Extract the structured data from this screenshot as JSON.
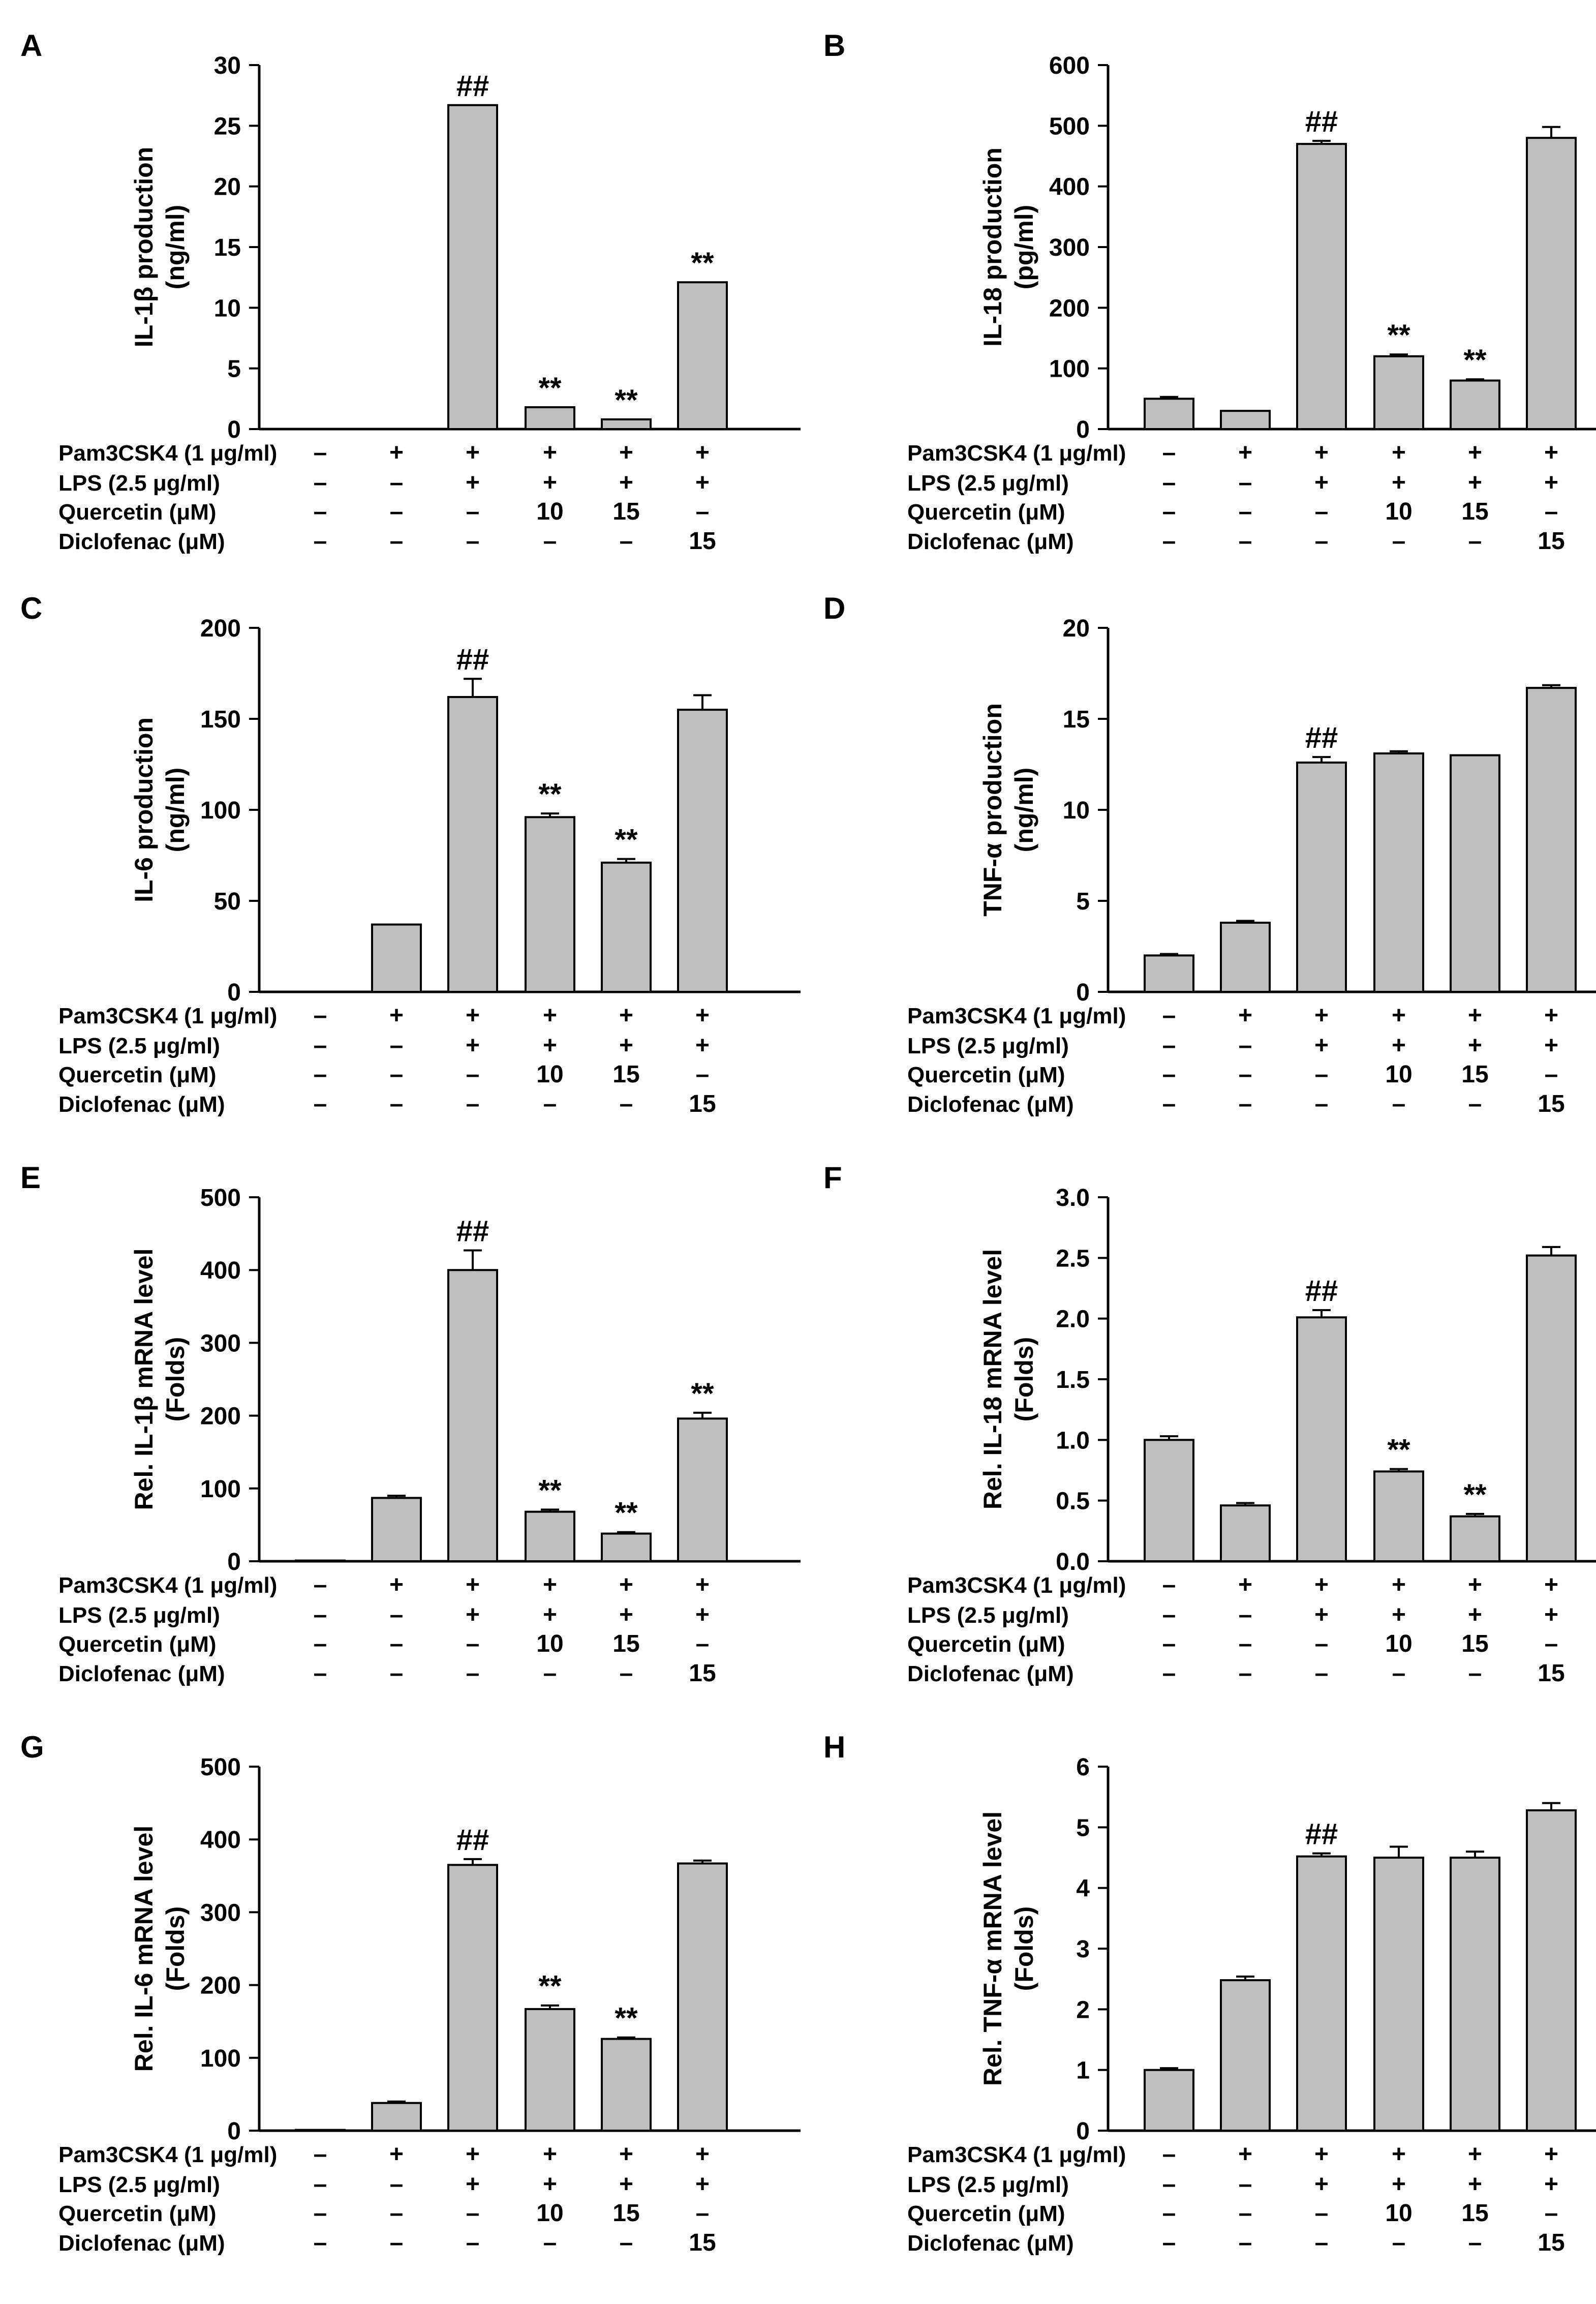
{
  "conditions": {
    "rows": [
      {
        "label": "Pam3CSK4 (1 μg/ml)",
        "values": [
          "–",
          "+",
          "+",
          "+",
          "+",
          "+"
        ]
      },
      {
        "label": "LPS (2.5 μg/ml)",
        "values": [
          "–",
          "–",
          "+",
          "+",
          "+",
          "+"
        ]
      },
      {
        "label": "Quercetin (μM)",
        "values": [
          "–",
          "–",
          "–",
          "10",
          "15",
          "–"
        ]
      },
      {
        "label": "Diclofenac (μM)",
        "values": [
          "–",
          "–",
          "–",
          "–",
          "–",
          "15"
        ]
      }
    ]
  },
  "chart_data": [
    {
      "panel": "A",
      "type": "bar",
      "ylabel": [
        "IL-1β production",
        "(ng/ml)"
      ],
      "ylim": [
        0,
        30
      ],
      "yticks": [
        0,
        5,
        10,
        15,
        20,
        25,
        30
      ],
      "values": [
        0,
        0,
        26.7,
        1.8,
        0.8,
        12.1
      ],
      "errors": [
        0,
        0,
        0,
        0,
        0,
        0
      ],
      "annotations": [
        "",
        "",
        "##",
        "**",
        "**",
        "**"
      ]
    },
    {
      "panel": "B",
      "type": "bar",
      "ylabel": [
        "IL-18 production",
        "(pg/ml)"
      ],
      "ylim": [
        0,
        600
      ],
      "yticks": [
        0,
        100,
        200,
        300,
        400,
        500,
        600
      ],
      "values": [
        50,
        30,
        470,
        120,
        80,
        480
      ],
      "errors": [
        3,
        0,
        5,
        3,
        2,
        18
      ],
      "annotations": [
        "",
        "",
        "##",
        "**",
        "**",
        ""
      ]
    },
    {
      "panel": "C",
      "type": "bar",
      "ylabel": [
        "IL-6 production",
        "(ng/ml)"
      ],
      "ylim": [
        0,
        200
      ],
      "yticks": [
        0,
        50,
        100,
        150,
        200
      ],
      "values": [
        0,
        37,
        162,
        96,
        71,
        155
      ],
      "errors": [
        0,
        0,
        10,
        2,
        2,
        8
      ],
      "annotations": [
        "",
        "",
        "##",
        "**",
        "**",
        ""
      ]
    },
    {
      "panel": "D",
      "type": "bar",
      "ylabel": [
        "TNF-α production",
        "(ng/ml)"
      ],
      "ylim": [
        0,
        20
      ],
      "yticks": [
        0,
        5,
        10,
        15,
        20
      ],
      "values": [
        2.0,
        3.8,
        12.6,
        13.1,
        13.0,
        16.7
      ],
      "errors": [
        0.08,
        0.1,
        0.3,
        0.12,
        0,
        0.15
      ],
      "annotations": [
        "",
        "",
        "##",
        "",
        "",
        ""
      ]
    },
    {
      "panel": "E",
      "type": "bar",
      "ylabel": [
        "Rel. IL-1β mRNA level",
        "(Folds)"
      ],
      "ylim": [
        0,
        500
      ],
      "yticks": [
        0,
        100,
        200,
        300,
        400,
        500
      ],
      "values": [
        1,
        87,
        400,
        68,
        38,
        196
      ],
      "errors": [
        0,
        3,
        27,
        3,
        2,
        8
      ],
      "annotations": [
        "",
        "",
        "##",
        "**",
        "**",
        "**"
      ]
    },
    {
      "panel": "F",
      "type": "bar",
      "ylabel": [
        "Rel. IL-18 mRNA level",
        "(Folds)"
      ],
      "ylim": [
        0,
        3.0
      ],
      "yticks": [
        "0.0",
        "0.5",
        "1.0",
        "1.5",
        "2.0",
        "2.5",
        "3.0"
      ],
      "values": [
        1.0,
        0.46,
        2.01,
        0.74,
        0.37,
        2.52
      ],
      "errors": [
        0.03,
        0.02,
        0.06,
        0.02,
        0.02,
        0.07
      ],
      "annotations": [
        "",
        "",
        "##",
        "**",
        "**",
        ""
      ]
    },
    {
      "panel": "G",
      "type": "bar",
      "ylabel": [
        "Rel. IL-6 mRNA level",
        "(Folds)"
      ],
      "ylim": [
        0,
        500
      ],
      "yticks": [
        0,
        100,
        200,
        300,
        400,
        500
      ],
      "values": [
        1,
        38,
        365,
        167,
        126,
        367
      ],
      "errors": [
        0,
        2,
        8,
        5,
        2,
        4
      ],
      "annotations": [
        "",
        "",
        "##",
        "**",
        "**",
        ""
      ]
    },
    {
      "panel": "H",
      "type": "bar",
      "ylabel": [
        "Rel. TNF-α mRNA level",
        "(Folds)"
      ],
      "ylim": [
        0,
        6
      ],
      "yticks": [
        0,
        1,
        2,
        3,
        4,
        5,
        6
      ],
      "values": [
        1.0,
        2.48,
        4.52,
        4.5,
        4.5,
        5.28
      ],
      "errors": [
        0.03,
        0.06,
        0.05,
        0.18,
        0.1,
        0.12
      ],
      "annotations": [
        "",
        "",
        "##",
        "",
        "",
        ""
      ]
    }
  ]
}
